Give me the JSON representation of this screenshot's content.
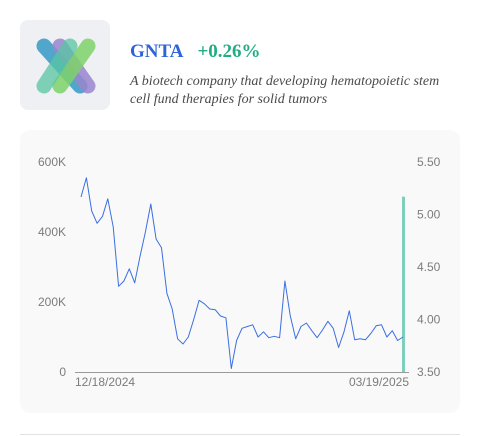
{
  "stock": {
    "ticker": "GNTA",
    "change": "+0.26%",
    "description": "A biotech company that developing hematopoietic stem cell fund therapies for solid tumors",
    "logo_icon": "gnta-ribbon-logo-icon"
  },
  "colors": {
    "ticker": "#2f64d8",
    "change": "#22ad84",
    "line": "#3b6fe0",
    "volume_bar": "#7fcfbd",
    "logo": [
      "#3f9fc7",
      "#9a86cf",
      "#7ed36a",
      "#57c6a2"
    ]
  },
  "chart_data": {
    "type": "line",
    "title": "",
    "xlabel": "",
    "ylabel": "",
    "left_axis": {
      "ticks": [
        "0",
        "200K",
        "400K",
        "600K"
      ],
      "min": 0,
      "max": 600000
    },
    "right_axis": {
      "ticks": [
        "3.50",
        "4.00",
        "4.50",
        "5.00",
        "5.50"
      ],
      "min": 3.5,
      "max": 5.5
    },
    "x_ticks": [
      "12/18/2024",
      "03/19/2025"
    ],
    "grid": false,
    "series": [
      {
        "axis": "left",
        "values": [
          500000,
          555000,
          460000,
          425000,
          445000,
          495000,
          415000,
          245000,
          260000,
          295000,
          255000,
          330000,
          400000,
          480000,
          380000,
          355000,
          225000,
          180000,
          95000,
          80000,
          100000,
          150000,
          205000,
          195000,
          180000,
          178000,
          160000,
          155000,
          10000,
          90000,
          125000,
          130000,
          135000,
          100000,
          115000,
          98000,
          102000,
          98000,
          260000,
          160000,
          95000,
          130000,
          140000,
          118000,
          98000,
          120000,
          145000,
          125000,
          70000,
          115000,
          175000,
          92000,
          95000,
          92000,
          110000,
          132000,
          135000,
          100000,
          118000,
          90000,
          100000
        ]
      }
    ],
    "highlight_bar": {
      "axis": "right",
      "value": 5.17
    }
  }
}
